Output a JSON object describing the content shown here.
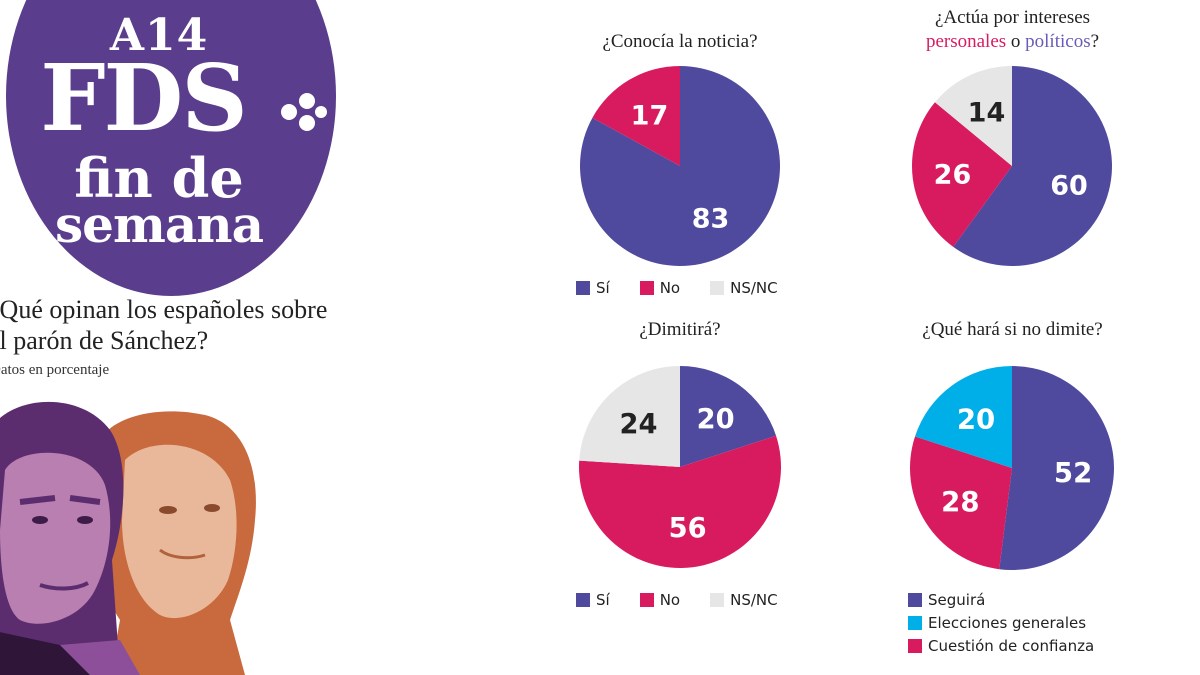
{
  "logo": {
    "edition": "A14",
    "brand": "FDS",
    "line1": "fin de",
    "line2": "semana"
  },
  "headline": "¿Qué opinan los españoles sobre el parón de Sánchez?",
  "subline": "Datos en porcentaje",
  "colors": {
    "purple": "#4f4a9e",
    "pink": "#d81b5e",
    "gray": "#e6e6e6",
    "cyan": "#00aee8",
    "brand": "#5a3d8c"
  },
  "chart_data": [
    {
      "type": "pie",
      "title": "¿Conocía la noticia?",
      "slices": [
        {
          "label": "Sí",
          "value": 83,
          "color": "#4f4a9e"
        },
        {
          "label": "No",
          "value": 17,
          "color": "#d81b5e"
        },
        {
          "label": "NS/NC",
          "value": 0,
          "color": "#e6e6e6"
        }
      ],
      "legend_placement": "bottom"
    },
    {
      "type": "pie",
      "title_parts": [
        "¿Actúa por intereses",
        "personales",
        "o",
        "políticos",
        "?"
      ],
      "slices": [
        {
          "label": "políticos",
          "value": 60,
          "color": "#4f4a9e"
        },
        {
          "label": "personales",
          "value": 26,
          "color": "#d81b5e"
        },
        {
          "label": "",
          "value": 14,
          "color": "#e6e6e6"
        }
      ]
    },
    {
      "type": "pie",
      "title": "¿Dimitirá?",
      "slices": [
        {
          "label": "Sí",
          "value": 20,
          "color": "#4f4a9e"
        },
        {
          "label": "No",
          "value": 56,
          "color": "#d81b5e"
        },
        {
          "label": "NS/NC",
          "value": 24,
          "color": "#e6e6e6"
        }
      ],
      "legend_placement": "bottom"
    },
    {
      "type": "pie",
      "title": "¿Qué hará si no dimite?",
      "slices": [
        {
          "label": "Seguirá",
          "value": 52,
          "color": "#4f4a9e"
        },
        {
          "label": "Cuestión de confianza",
          "value": 28,
          "color": "#d81b5e"
        },
        {
          "label": "Elecciones generales",
          "value": 20,
          "color": "#00aee8"
        }
      ],
      "legend": [
        "Seguirá",
        "Elecciones generales",
        "Cuestión de confianza"
      ],
      "legend_placement": "bottom"
    }
  ]
}
